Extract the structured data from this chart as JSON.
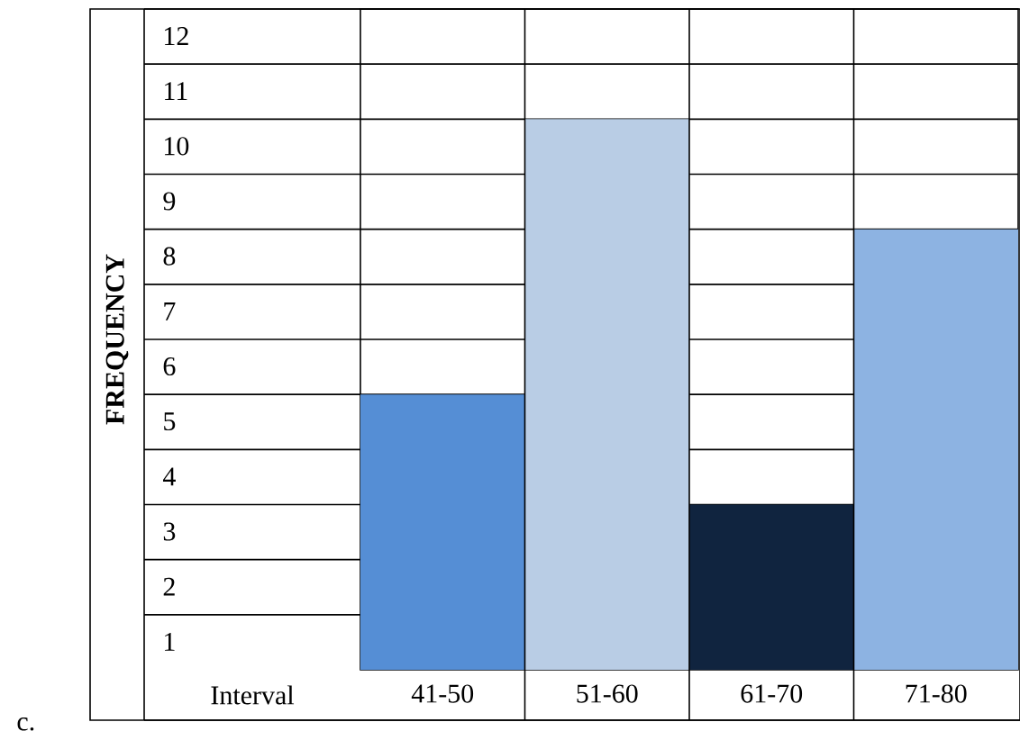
{
  "chart_data": {
    "type": "bar",
    "ylabel": "FREQUENCY",
    "xlabel": "Interval",
    "categories": [
      "41-50",
      "51-60",
      "61-70",
      "71-80"
    ],
    "values": [
      5,
      10,
      3,
      8
    ],
    "colors": [
      "#558ed5",
      "#b9cde5",
      "#10243f",
      "#8db3e2"
    ],
    "ylim": [
      0,
      12
    ],
    "yticks": [
      1,
      2,
      3,
      4,
      5,
      6,
      7,
      8,
      9,
      10,
      11,
      12
    ],
    "grid": "y",
    "annotations": [
      "c."
    ]
  }
}
